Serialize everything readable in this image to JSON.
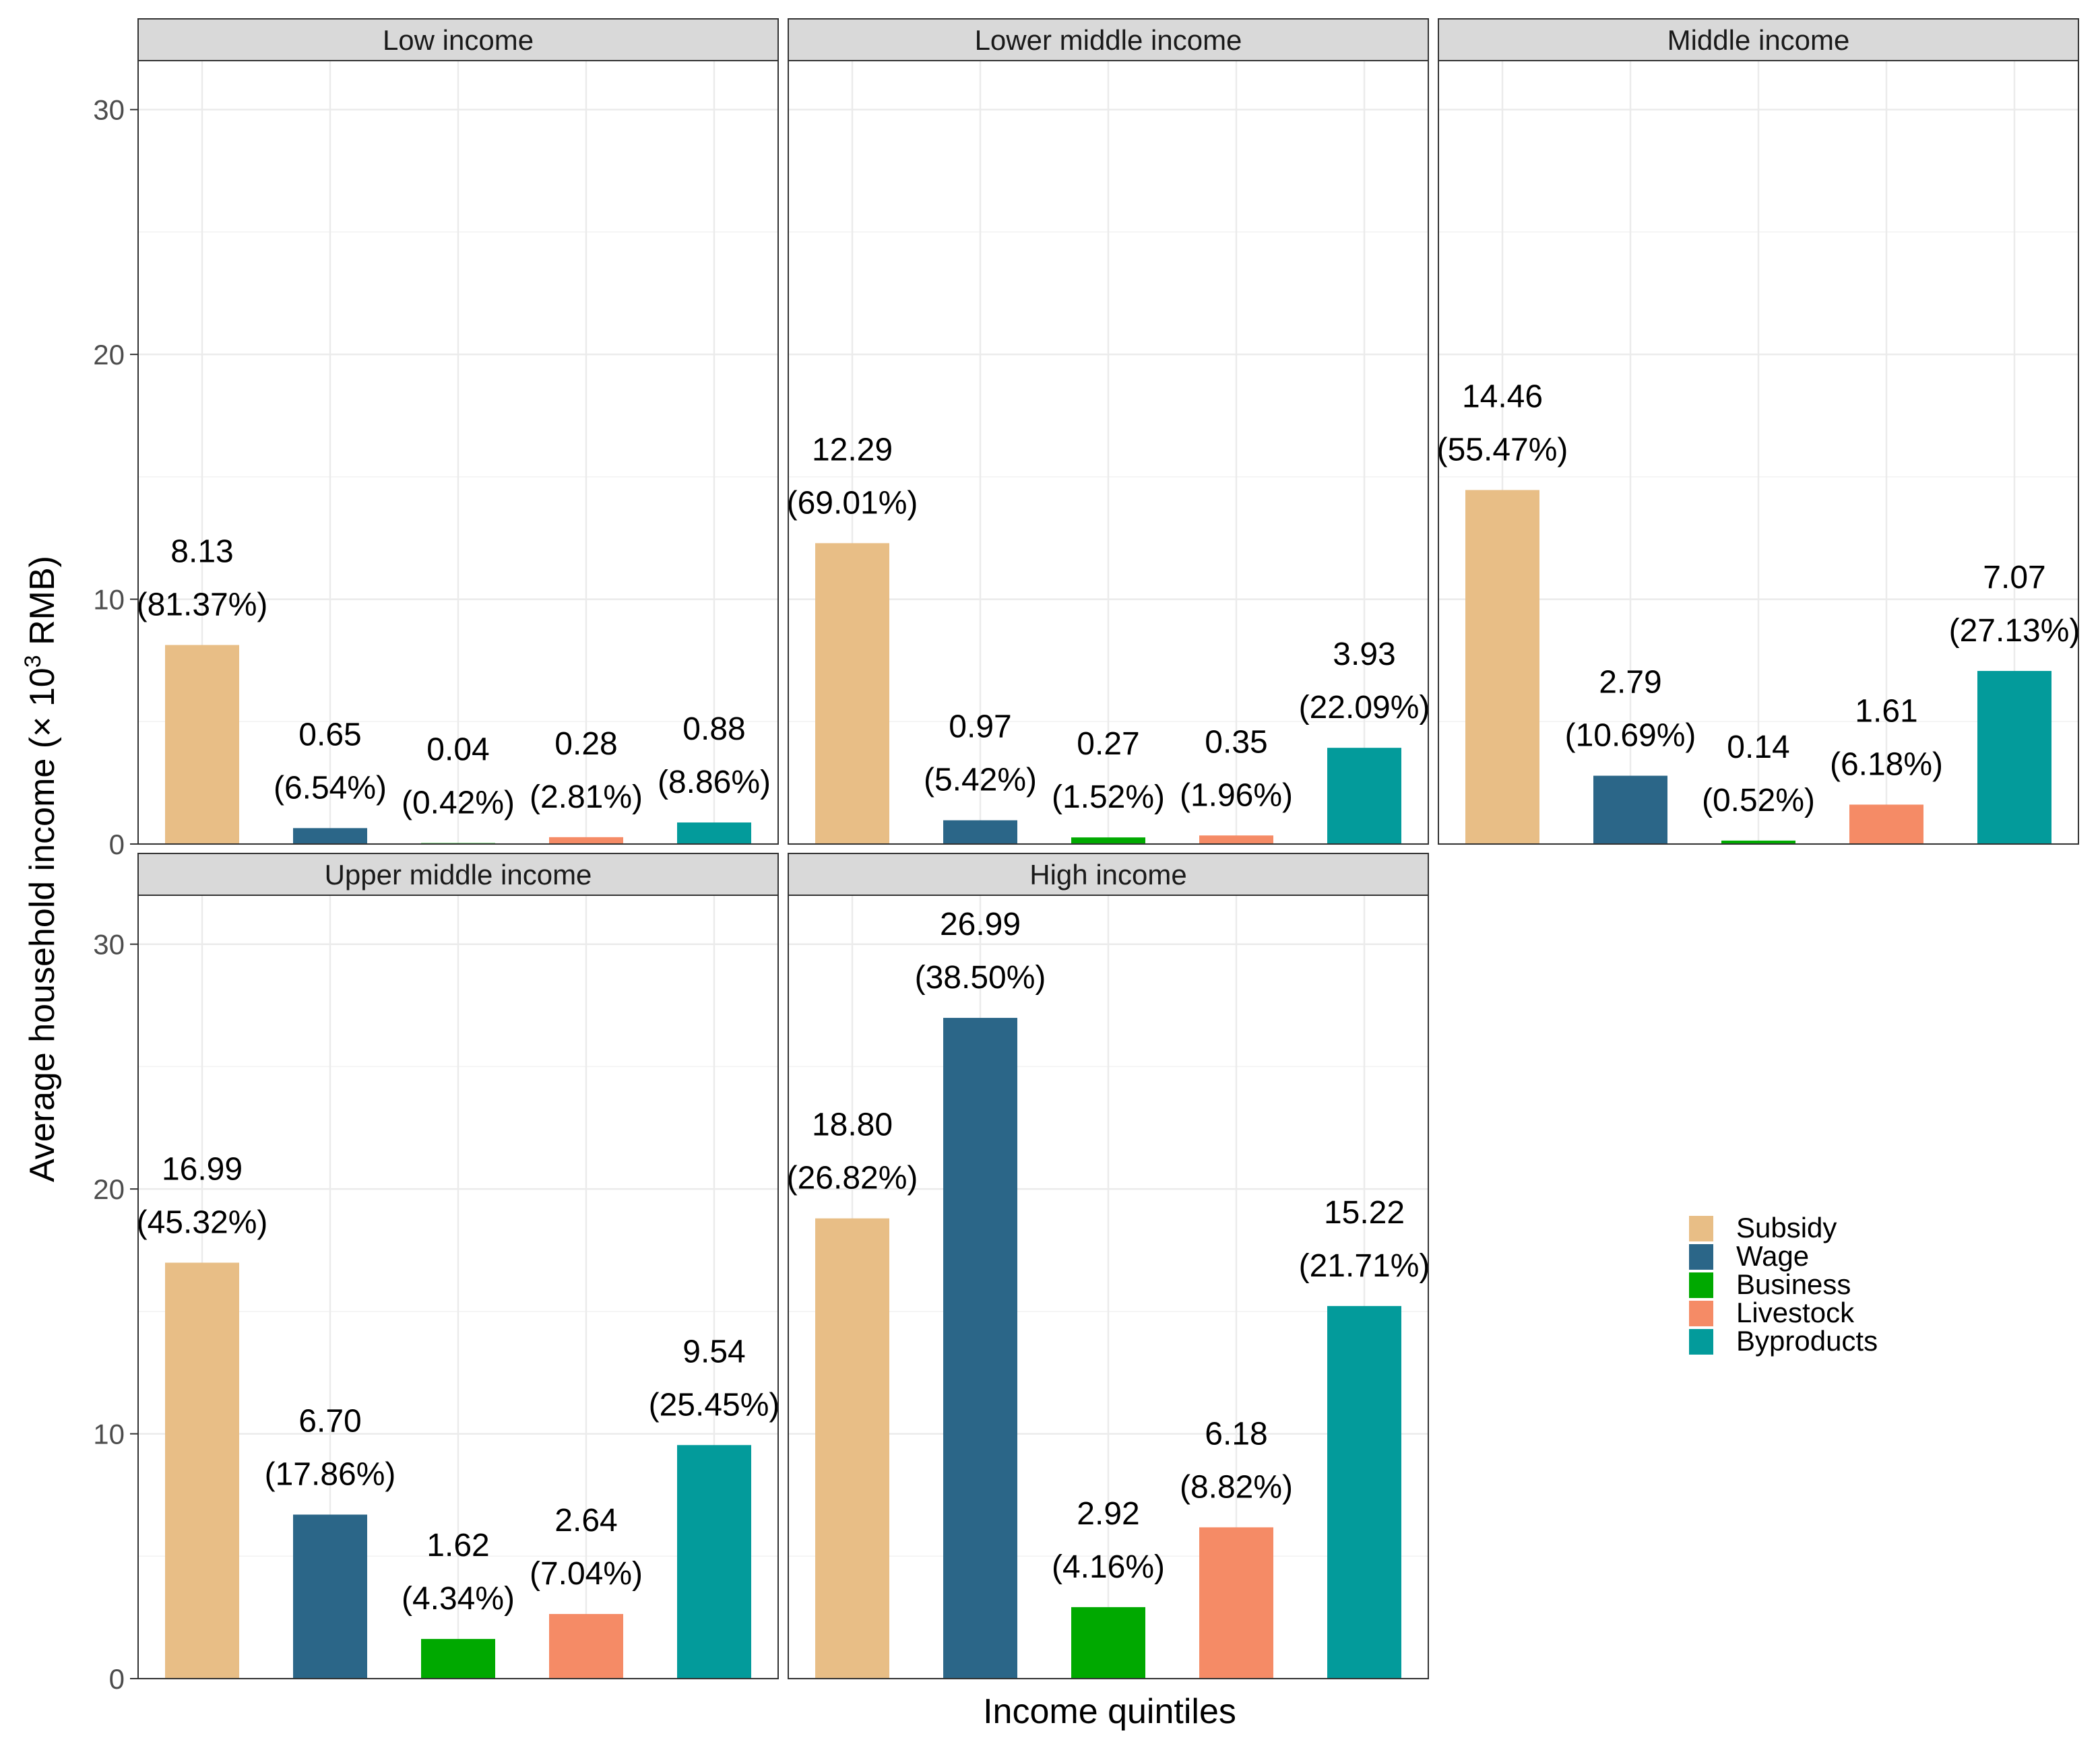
{
  "chart_data": {
    "type": "bar",
    "facet_layout": "3 columns x 2 rows",
    "xlabel": "Income quintiles",
    "ylabel_prefix": "Average household income (× 10",
    "ylabel_sup": "3",
    "ylabel_suffix": " RMB)",
    "ylim": [
      0,
      32
    ],
    "yticks": [
      "0",
      "10",
      "20",
      "30"
    ],
    "grid": true,
    "legend_position": "right",
    "categories": [
      "Subsidy",
      "Wage",
      "Business",
      "Livestock",
      "Byproducts"
    ],
    "colors": [
      "#E8BE86",
      "#2B6688",
      "#00A900",
      "#F58B66",
      "#039B9B"
    ],
    "facets": [
      {
        "title": "Low income",
        "values": [
          8.13,
          0.65,
          0.04,
          0.28,
          0.88
        ],
        "labels": [
          "8.13",
          "0.65",
          "0.04",
          "0.28",
          "0.88"
        ],
        "percents": [
          "(81.37%)",
          "(6.54%)",
          "(0.42%)",
          "(2.81%)",
          "(8.86%)"
        ]
      },
      {
        "title": "Lower middle income",
        "values": [
          12.29,
          0.97,
          0.27,
          0.35,
          3.93
        ],
        "labels": [
          "12.29",
          "0.97",
          "0.27",
          "0.35",
          "3.93"
        ],
        "percents": [
          "(69.01%)",
          "(5.42%)",
          "(1.52%)",
          "(1.96%)",
          "(22.09%)"
        ]
      },
      {
        "title": "Middle income",
        "values": [
          14.46,
          2.79,
          0.14,
          1.61,
          7.07
        ],
        "labels": [
          "14.46",
          "2.79",
          "0.14",
          "1.61",
          "7.07"
        ],
        "percents": [
          "(55.47%)",
          "(10.69%)",
          "(0.52%)",
          "(6.18%)",
          "(27.13%)"
        ]
      },
      {
        "title": "Upper middle income",
        "values": [
          16.99,
          6.7,
          1.62,
          2.64,
          9.54
        ],
        "labels": [
          "16.99",
          "6.70",
          "1.62",
          "2.64",
          "9.54"
        ],
        "percents": [
          "(45.32%)",
          "(17.86%)",
          "(4.34%)",
          "(7.04%)",
          "(25.45%)"
        ]
      },
      {
        "title": "High income",
        "values": [
          18.8,
          26.99,
          2.92,
          6.18,
          15.22
        ],
        "labels": [
          "18.80",
          "26.99",
          "2.92",
          "6.18",
          "15.22"
        ],
        "percents": [
          "(26.82%)",
          "(38.50%)",
          "(4.16%)",
          "(8.82%)",
          "(21.71%)"
        ]
      }
    ]
  }
}
